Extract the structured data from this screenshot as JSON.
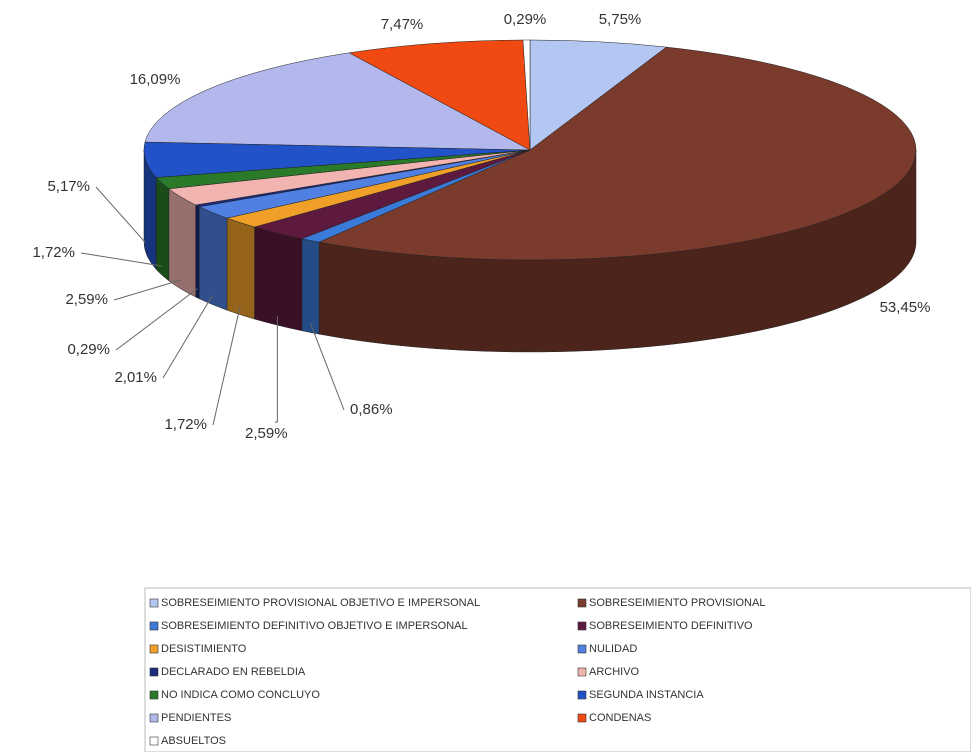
{
  "chart_data": {
    "type": "pie",
    "categories": [
      "SOBRESEIMIENTO PROVISIONAL OBJETIVO E IMPERSONAL",
      "SOBRESEIMIENTO PROVISIONAL",
      "SOBRESEIMIENTO DEFINITIVO OBJETIVO E IMPERSONAL",
      "SOBRESEIMIENTO DEFINITIVO",
      "DESISTIMIENTO",
      "NULIDAD",
      "DECLARADO EN REBELDIA",
      "ARCHIVO",
      "NO INDICA COMO CONCLUYO",
      "SEGUNDA INSTANCIA",
      "PENDIENTES",
      "CONDENAS",
      "ABSUELTOS"
    ],
    "values": [
      5.75,
      53.45,
      0.86,
      2.59,
      1.72,
      2.01,
      0.29,
      2.59,
      1.72,
      5.17,
      16.09,
      7.47,
      0.29
    ],
    "value_labels": [
      "5,75%",
      "53,45%",
      "0,86%",
      "2,59%",
      "1,72%",
      "2,01%",
      "0,29%",
      "2,59%",
      "1,72%",
      "5,17%",
      "16,09%",
      "7,47%",
      "0,29%"
    ],
    "colors": [
      "#b4c6f2",
      "#7a3a2c",
      "#3a7ad8",
      "#5e1a3e",
      "#f0a028",
      "#4f80e2",
      "#1a2a80",
      "#f2b4b0",
      "#2a7a2a",
      "#2252c8",
      "#b2b8ec",
      "#f04a12",
      "#ffffff"
    ]
  }
}
